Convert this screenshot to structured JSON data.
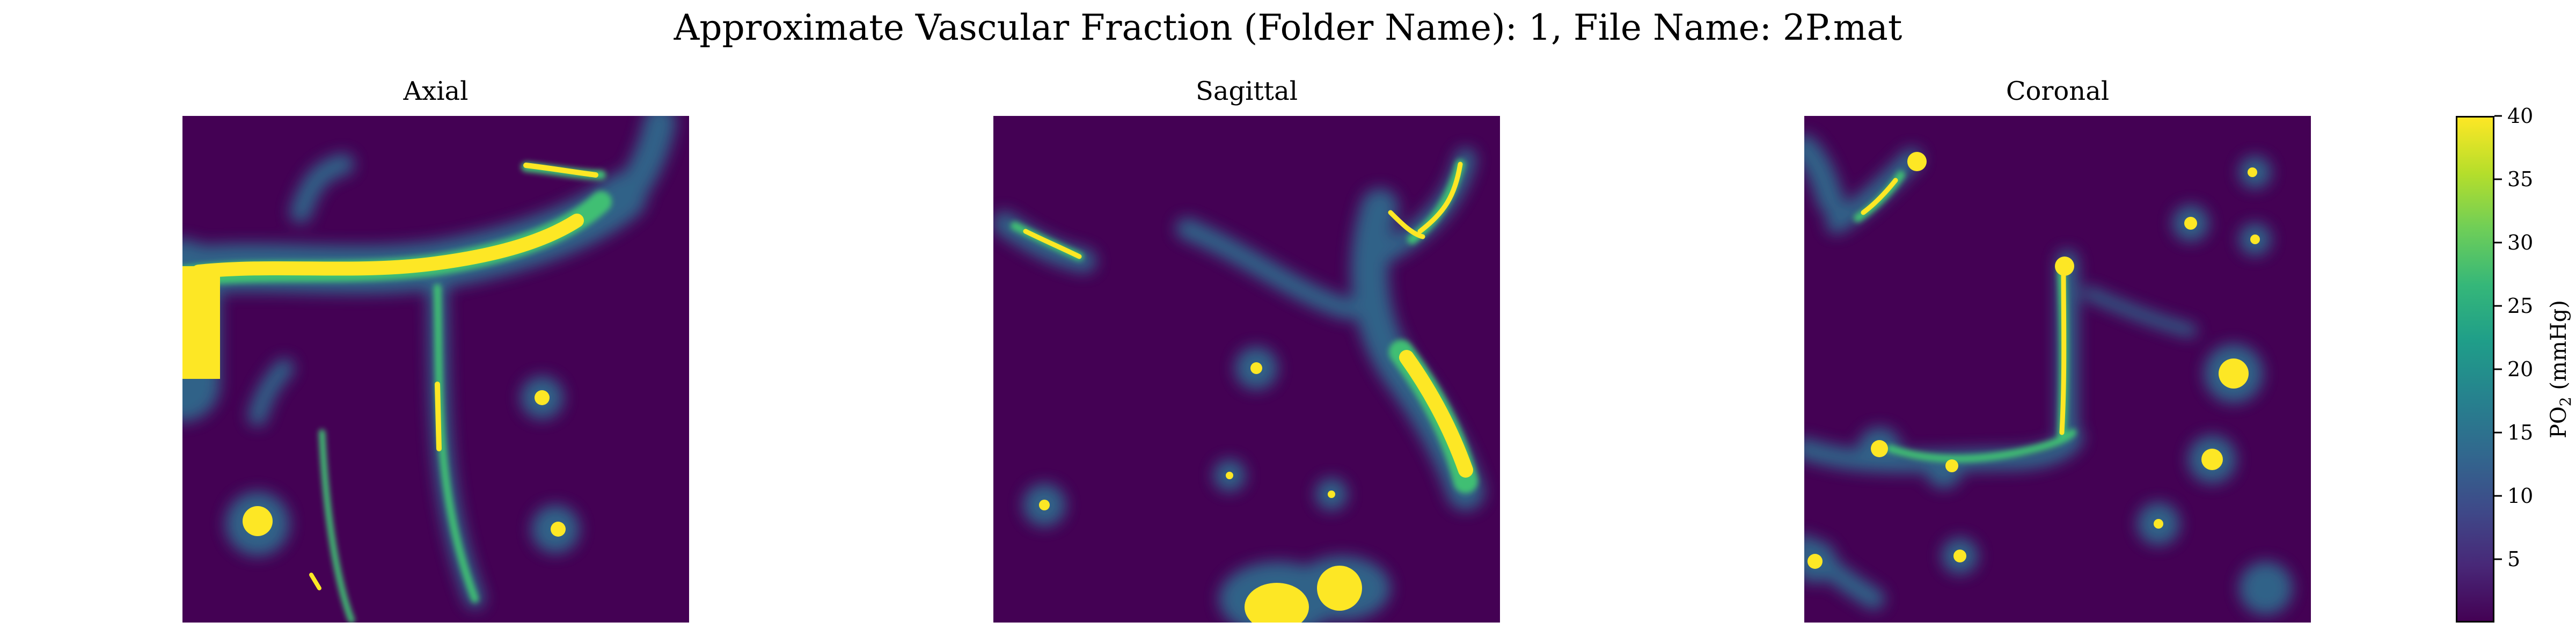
{
  "figure": {
    "title": "Approximate Vascular Fraction (Folder Name): 1, File Name: 2P.mat"
  },
  "panels": [
    {
      "title": "Axial"
    },
    {
      "title": "Sagittal"
    },
    {
      "title": "Coronal"
    }
  ],
  "colorbar": {
    "label_main": "PO",
    "label_sub": "2",
    "label_unit": " (mmHg)",
    "min": 0,
    "max": 40,
    "ticks": [
      5,
      10,
      15,
      20,
      25,
      30,
      35,
      40
    ],
    "tick_labels": [
      "5",
      "10",
      "15",
      "20",
      "25",
      "30",
      "35",
      "40"
    ],
    "colormap": "viridis",
    "colors": [
      "#440154",
      "#482878",
      "#3e4a89",
      "#31688e",
      "#26828e",
      "#1f9e89",
      "#35b779",
      "#6ece58",
      "#b5de2b",
      "#fde725"
    ]
  },
  "chart_data": [
    {
      "type": "heatmap",
      "title": "Axial",
      "colormap": "viridis",
      "value_range": [
        0,
        40
      ],
      "value_unit": "mmHg",
      "description_of_field": "2D PO2 map, sparse vessels on a low background",
      "features": [
        {
          "kind": "vessel",
          "peak": 40
        },
        {
          "kind": "blob",
          "peak": 40
        },
        {
          "kind": "blob",
          "peak": 28
        }
      ]
    },
    {
      "type": "heatmap",
      "title": "Sagittal",
      "colormap": "viridis",
      "value_range": [
        0,
        40
      ],
      "value_unit": "mmHg"
    },
    {
      "type": "heatmap",
      "title": "Coronal",
      "colormap": "viridis",
      "value_range": [
        0,
        40
      ],
      "value_unit": "mmHg"
    }
  ]
}
